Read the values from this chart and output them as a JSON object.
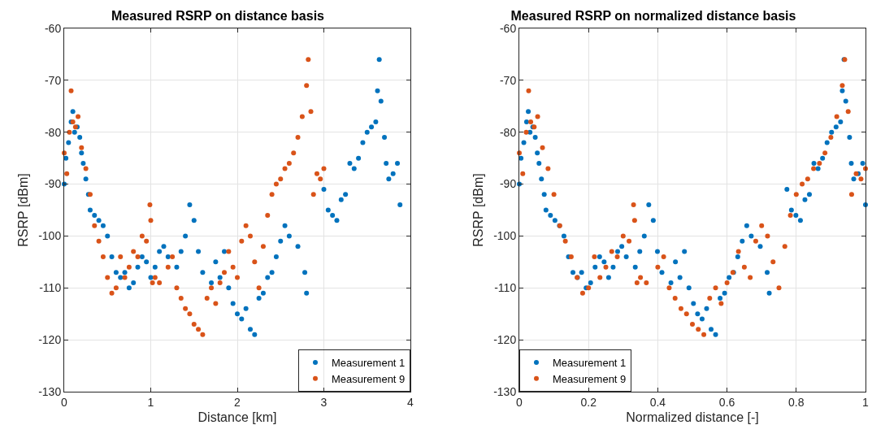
{
  "chart_data": [
    {
      "type": "scatter",
      "title": "Measured RSRP on distance basis",
      "xlabel": "Distance [km]",
      "ylabel": "RSRP [dBm]",
      "xlim": [
        0,
        4
      ],
      "xticks": [
        0,
        1,
        2,
        3,
        4
      ],
      "ylim": [
        -130,
        -60
      ],
      "yticks": [
        -130,
        -120,
        -110,
        -100,
        -90,
        -80,
        -70,
        -60
      ],
      "grid": true,
      "legend": "bottom right",
      "marker": "circle",
      "series": [
        {
          "name": "Measurement 1",
          "color": "#0072bd",
          "x": [
            0,
            0.02,
            0.05,
            0.08,
            0.1,
            0.12,
            0.15,
            0.18,
            0.2,
            0.22,
            0.25,
            0.28,
            0.3,
            0.35,
            0.4,
            0.45,
            0.5,
            0.55,
            0.6,
            0.65,
            0.7,
            0.75,
            0.8,
            0.85,
            0.9,
            0.95,
            1.0,
            1.05,
            1.1,
            1.15,
            1.2,
            1.3,
            1.35,
            1.4,
            1.45,
            1.5,
            1.55,
            1.6,
            1.7,
            1.75,
            1.8,
            1.85,
            1.9,
            1.95,
            2.0,
            2.05,
            2.1,
            2.15,
            2.2,
            2.25,
            2.3,
            2.35,
            2.4,
            2.45,
            2.5,
            2.55,
            2.6,
            2.7,
            2.78,
            2.8,
            3.0,
            3.05,
            3.1,
            3.15,
            3.2,
            3.25,
            3.3,
            3.35,
            3.4,
            3.45,
            3.5,
            3.55,
            3.6,
            3.62,
            3.64,
            3.66,
            3.7,
            3.72,
            3.75,
            3.8,
            3.85,
            3.88
          ],
          "values": [
            -90,
            -85,
            -82,
            -78,
            -76,
            -80,
            -79,
            -81,
            -84,
            -86,
            -89,
            -92,
            -95,
            -96,
            -97,
            -98,
            -100,
            -104,
            -107,
            -108,
            -107,
            -110,
            -109,
            -106,
            -104,
            -105,
            -108,
            -106,
            -103,
            -102,
            -104,
            -106,
            -103,
            -100,
            -94,
            -97,
            -103,
            -107,
            -109,
            -105,
            -108,
            -103,
            -110,
            -113,
            -115,
            -116,
            -114,
            -118,
            -119,
            -112,
            -111,
            -108,
            -107,
            -104,
            -101,
            -98,
            -100,
            -102,
            -107,
            -111,
            -91,
            -95,
            -96,
            -97,
            -93,
            -92,
            -86,
            -87,
            -85,
            -82,
            -80,
            -79,
            -78,
            -72,
            -66,
            -74,
            -81,
            -86,
            -89,
            -88,
            -86,
            -94
          ]
        },
        {
          "name": "Measurement 9",
          "color": "#d95319",
          "x": [
            0,
            0.03,
            0.06,
            0.08,
            0.1,
            0.13,
            0.16,
            0.2,
            0.25,
            0.3,
            0.35,
            0.4,
            0.45,
            0.5,
            0.55,
            0.6,
            0.65,
            0.7,
            0.75,
            0.8,
            0.85,
            0.9,
            0.95,
            0.99,
            1.0,
            1.02,
            1.05,
            1.1,
            1.2,
            1.25,
            1.3,
            1.35,
            1.4,
            1.45,
            1.5,
            1.55,
            1.6,
            1.65,
            1.7,
            1.75,
            1.8,
            1.85,
            1.9,
            1.95,
            2.0,
            2.05,
            2.1,
            2.15,
            2.2,
            2.25,
            2.3,
            2.35,
            2.4,
            2.45,
            2.5,
            2.55,
            2.6,
            2.65,
            2.7,
            2.75,
            2.8,
            2.82,
            2.85,
            2.88,
            2.92,
            2.96,
            3.0
          ],
          "values": [
            -84,
            -88,
            -80,
            -72,
            -78,
            -79,
            -77,
            -83,
            -87,
            -92,
            -98,
            -101,
            -104,
            -108,
            -111,
            -110,
            -104,
            -108,
            -106,
            -103,
            -104,
            -100,
            -101,
            -94,
            -97,
            -109,
            -108,
            -109,
            -106,
            -104,
            -110,
            -112,
            -114,
            -115,
            -117,
            -118,
            -119,
            -112,
            -110,
            -113,
            -109,
            -107,
            -103,
            -106,
            -108,
            -101,
            -98,
            -100,
            -105,
            -110,
            -102,
            -96,
            -92,
            -90,
            -89,
            -87,
            -86,
            -84,
            -81,
            -77,
            -71,
            -66,
            -76,
            -92,
            -88,
            -89,
            -87
          ]
        }
      ]
    },
    {
      "type": "scatter",
      "title": "Measured RSRP on normalized distance basis",
      "xlabel": "Normalized distance [-]",
      "ylabel": "RSRP [dBm]",
      "xlim": [
        0,
        1
      ],
      "xticks": [
        0,
        0.2,
        0.4,
        0.6,
        0.8,
        1
      ],
      "ylim": [
        -130,
        -60
      ],
      "yticks": [
        -130,
        -120,
        -110,
        -100,
        -90,
        -80,
        -70,
        -60
      ],
      "grid": true,
      "legend": "bottom left",
      "marker": "circle",
      "series": [
        {
          "name": "Measurement 1",
          "color": "#0072bd",
          "x": [
            0,
            0.005,
            0.013,
            0.021,
            0.026,
            0.031,
            0.039,
            0.046,
            0.052,
            0.057,
            0.064,
            0.072,
            0.077,
            0.09,
            0.103,
            0.116,
            0.129,
            0.142,
            0.155,
            0.168,
            0.18,
            0.193,
            0.206,
            0.219,
            0.232,
            0.245,
            0.258,
            0.271,
            0.284,
            0.296,
            0.309,
            0.335,
            0.348,
            0.361,
            0.374,
            0.387,
            0.399,
            0.412,
            0.438,
            0.451,
            0.464,
            0.477,
            0.49,
            0.503,
            0.515,
            0.528,
            0.541,
            0.554,
            0.567,
            0.58,
            0.593,
            0.606,
            0.619,
            0.631,
            0.644,
            0.657,
            0.67,
            0.696,
            0.716,
            0.722,
            0.773,
            0.786,
            0.799,
            0.812,
            0.825,
            0.838,
            0.851,
            0.863,
            0.876,
            0.889,
            0.902,
            0.915,
            0.928,
            0.933,
            0.938,
            0.943,
            0.954,
            0.959,
            0.966,
            0.979,
            0.992,
            1.0
          ],
          "values": [
            -90,
            -85,
            -82,
            -78,
            -76,
            -80,
            -79,
            -81,
            -84,
            -86,
            -89,
            -92,
            -95,
            -96,
            -97,
            -98,
            -100,
            -104,
            -107,
            -108,
            -107,
            -110,
            -109,
            -106,
            -104,
            -105,
            -108,
            -106,
            -103,
            -102,
            -104,
            -106,
            -103,
            -100,
            -94,
            -97,
            -103,
            -107,
            -109,
            -105,
            -108,
            -103,
            -110,
            -113,
            -115,
            -116,
            -114,
            -118,
            -119,
            -112,
            -111,
            -108,
            -107,
            -104,
            -101,
            -98,
            -100,
            -102,
            -107,
            -111,
            -91,
            -95,
            -96,
            -97,
            -93,
            -92,
            -86,
            -87,
            -85,
            -82,
            -80,
            -79,
            -78,
            -72,
            -66,
            -74,
            -81,
            -86,
            -89,
            -88,
            -86,
            -94
          ]
        },
        {
          "name": "Measurement 9",
          "color": "#d95319",
          "x": [
            0,
            0.01,
            0.02,
            0.027,
            0.033,
            0.043,
            0.053,
            0.067,
            0.083,
            0.1,
            0.117,
            0.133,
            0.15,
            0.167,
            0.183,
            0.2,
            0.217,
            0.233,
            0.25,
            0.267,
            0.283,
            0.3,
            0.317,
            0.33,
            0.333,
            0.34,
            0.35,
            0.367,
            0.4,
            0.417,
            0.433,
            0.45,
            0.467,
            0.483,
            0.5,
            0.517,
            0.533,
            0.55,
            0.567,
            0.583,
            0.6,
            0.617,
            0.633,
            0.65,
            0.667,
            0.683,
            0.7,
            0.717,
            0.733,
            0.75,
            0.767,
            0.783,
            0.8,
            0.817,
            0.833,
            0.85,
            0.867,
            0.883,
            0.9,
            0.917,
            0.933,
            0.94,
            0.95,
            0.96,
            0.973,
            0.987,
            1.0
          ],
          "values": [
            -84,
            -88,
            -80,
            -72,
            -78,
            -79,
            -77,
            -83,
            -87,
            -92,
            -98,
            -101,
            -104,
            -108,
            -111,
            -110,
            -104,
            -108,
            -106,
            -103,
            -104,
            -100,
            -101,
            -94,
            -97,
            -109,
            -108,
            -109,
            -106,
            -104,
            -110,
            -112,
            -114,
            -115,
            -117,
            -118,
            -119,
            -112,
            -110,
            -113,
            -109,
            -107,
            -103,
            -106,
            -108,
            -101,
            -98,
            -100,
            -105,
            -110,
            -102,
            -96,
            -92,
            -90,
            -89,
            -87,
            -86,
            -84,
            -81,
            -77,
            -71,
            -66,
            -76,
            -92,
            -88,
            -89,
            -87
          ]
        }
      ]
    }
  ]
}
